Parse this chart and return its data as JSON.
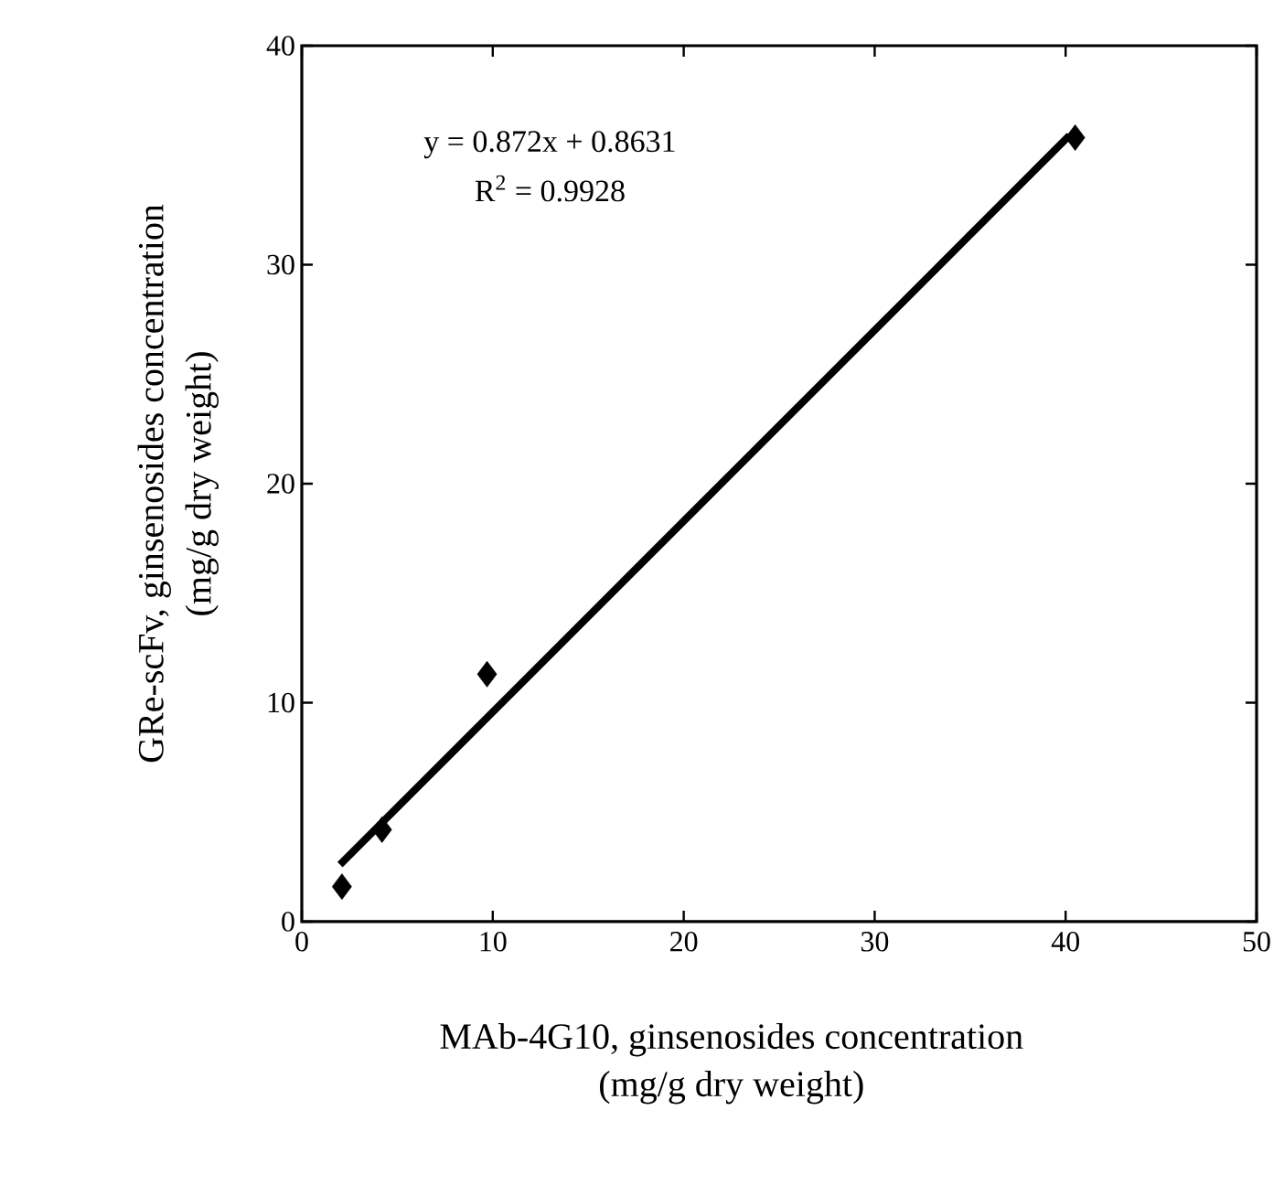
{
  "chart_data": {
    "type": "scatter",
    "xlabel": "MAb-4G10, ginsenosides concentration\n(mg/g dry weight)",
    "ylabel": "GRe-scFv, ginsenosides concentration\n(mg/g dry weight)",
    "annotations": [
      "y = 0.872x + 0.8631",
      "R$^{2}$ = 0.9928"
    ],
    "series": [
      {
        "color": "#000000",
        "marker": "diamond",
        "x": [
          2.1,
          4.2,
          9.7,
          40.5
        ],
        "values": [
          1.6,
          4.2,
          11.3,
          35.8
        ]
      },
      {
        "type": "line",
        "color": "#000000",
        "marker": "none",
        "x": [
          2.0,
          40.2
        ],
        "values": [
          2.6,
          35.9
        ]
      }
    ],
    "xlim": [
      0,
      50
    ],
    "xticks": [
      0,
      10,
      20,
      30,
      40,
      50
    ],
    "ylim": [
      0,
      40
    ],
    "yticks": [
      0,
      10,
      20,
      30,
      40
    ],
    "line_style": "solid"
  }
}
